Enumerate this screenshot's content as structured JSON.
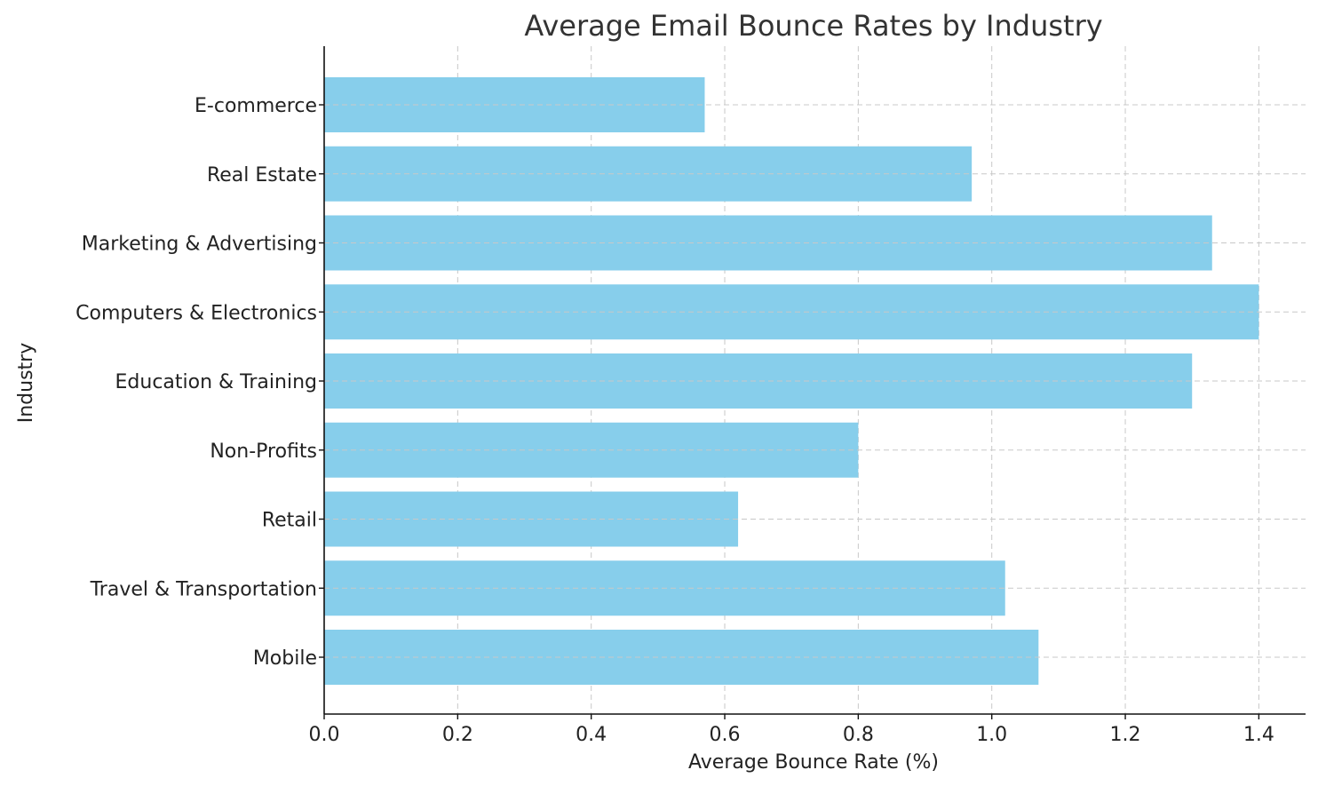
{
  "chart_data": {
    "type": "bar",
    "orientation": "horizontal",
    "title": "Average Email Bounce Rates by Industry",
    "xlabel": "Average Bounce Rate (%)",
    "ylabel": "Industry",
    "categories": [
      "E-commerce",
      "Real Estate",
      "Marketing & Advertising",
      "Computers & Electronics",
      "Education & Training",
      "Non-Profits",
      "Retail",
      "Travel & Transportation",
      "Mobile"
    ],
    "values": [
      0.57,
      0.97,
      1.33,
      1.4,
      1.3,
      0.8,
      0.62,
      1.02,
      1.07
    ],
    "xlim": [
      0,
      1.47
    ],
    "xticks": [
      "0.0",
      "0.2",
      "0.4",
      "0.6",
      "0.8",
      "1.0",
      "1.2",
      "1.4"
    ],
    "xtick_values": [
      0,
      0.2,
      0.4,
      0.6,
      0.8,
      1.0,
      1.2,
      1.4
    ],
    "grid": true,
    "bar_color": "#87ceeb"
  }
}
